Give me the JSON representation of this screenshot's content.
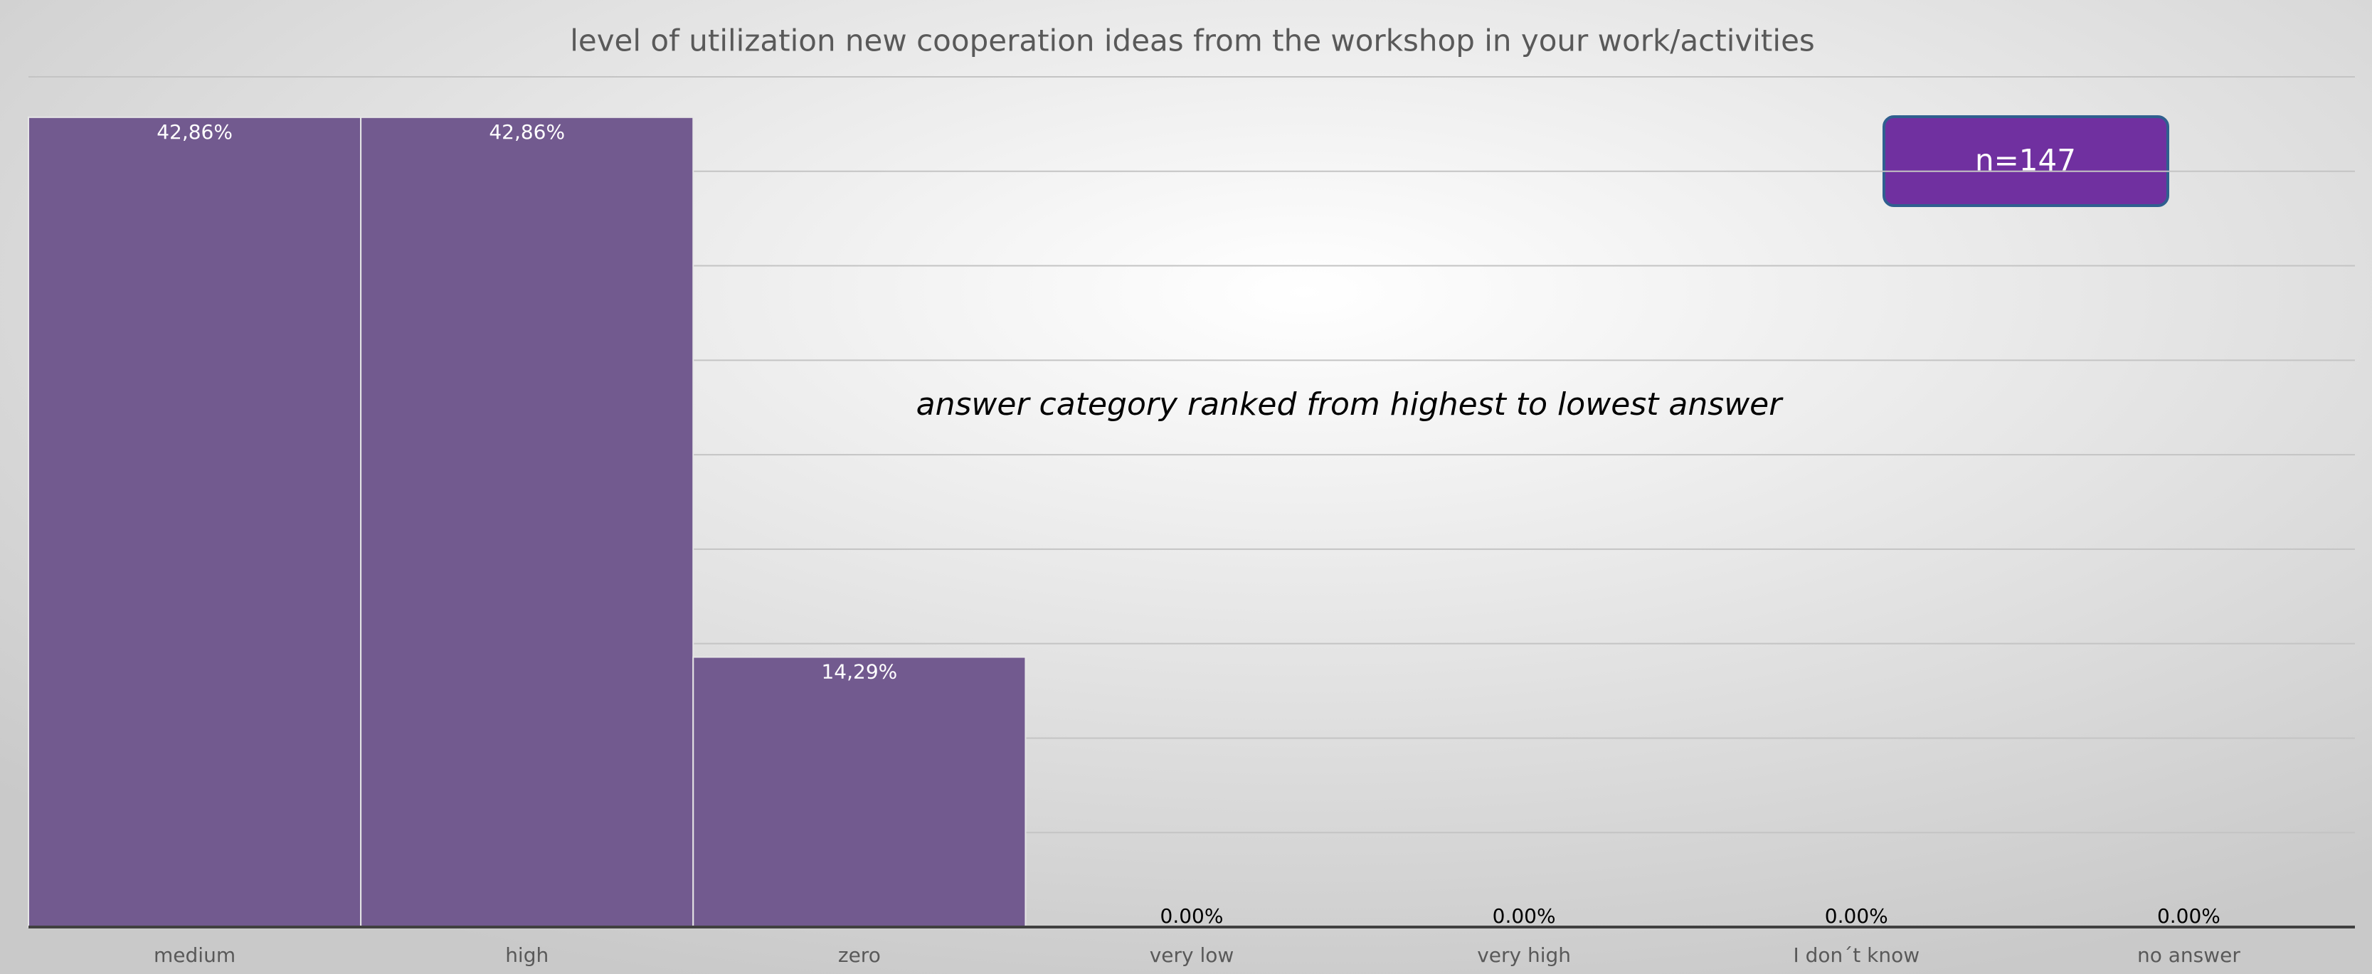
{
  "chart_data": {
    "type": "bar",
    "title": "level of utilization new cooperation ideas from the workshop in your work/activities",
    "categories": [
      "medium",
      "high",
      "zero",
      "very low",
      "very high",
      "I don´t know",
      "no answer"
    ],
    "values": [
      42.86,
      42.86,
      14.29,
      0,
      0,
      0,
      0
    ],
    "value_labels": [
      "42,86%",
      "42,86%",
      "14,29%",
      "0.00%",
      "0.00%",
      "0.00%",
      "0.00%"
    ],
    "color": "#725a8f",
    "ylim": [
      0,
      45
    ],
    "yticks": [
      0,
      5,
      10,
      15,
      20,
      25,
      30,
      35,
      40,
      45
    ],
    "grid": true,
    "annotations": [
      "n=147",
      "answer category ranked from highest to lowest answer"
    ]
  }
}
